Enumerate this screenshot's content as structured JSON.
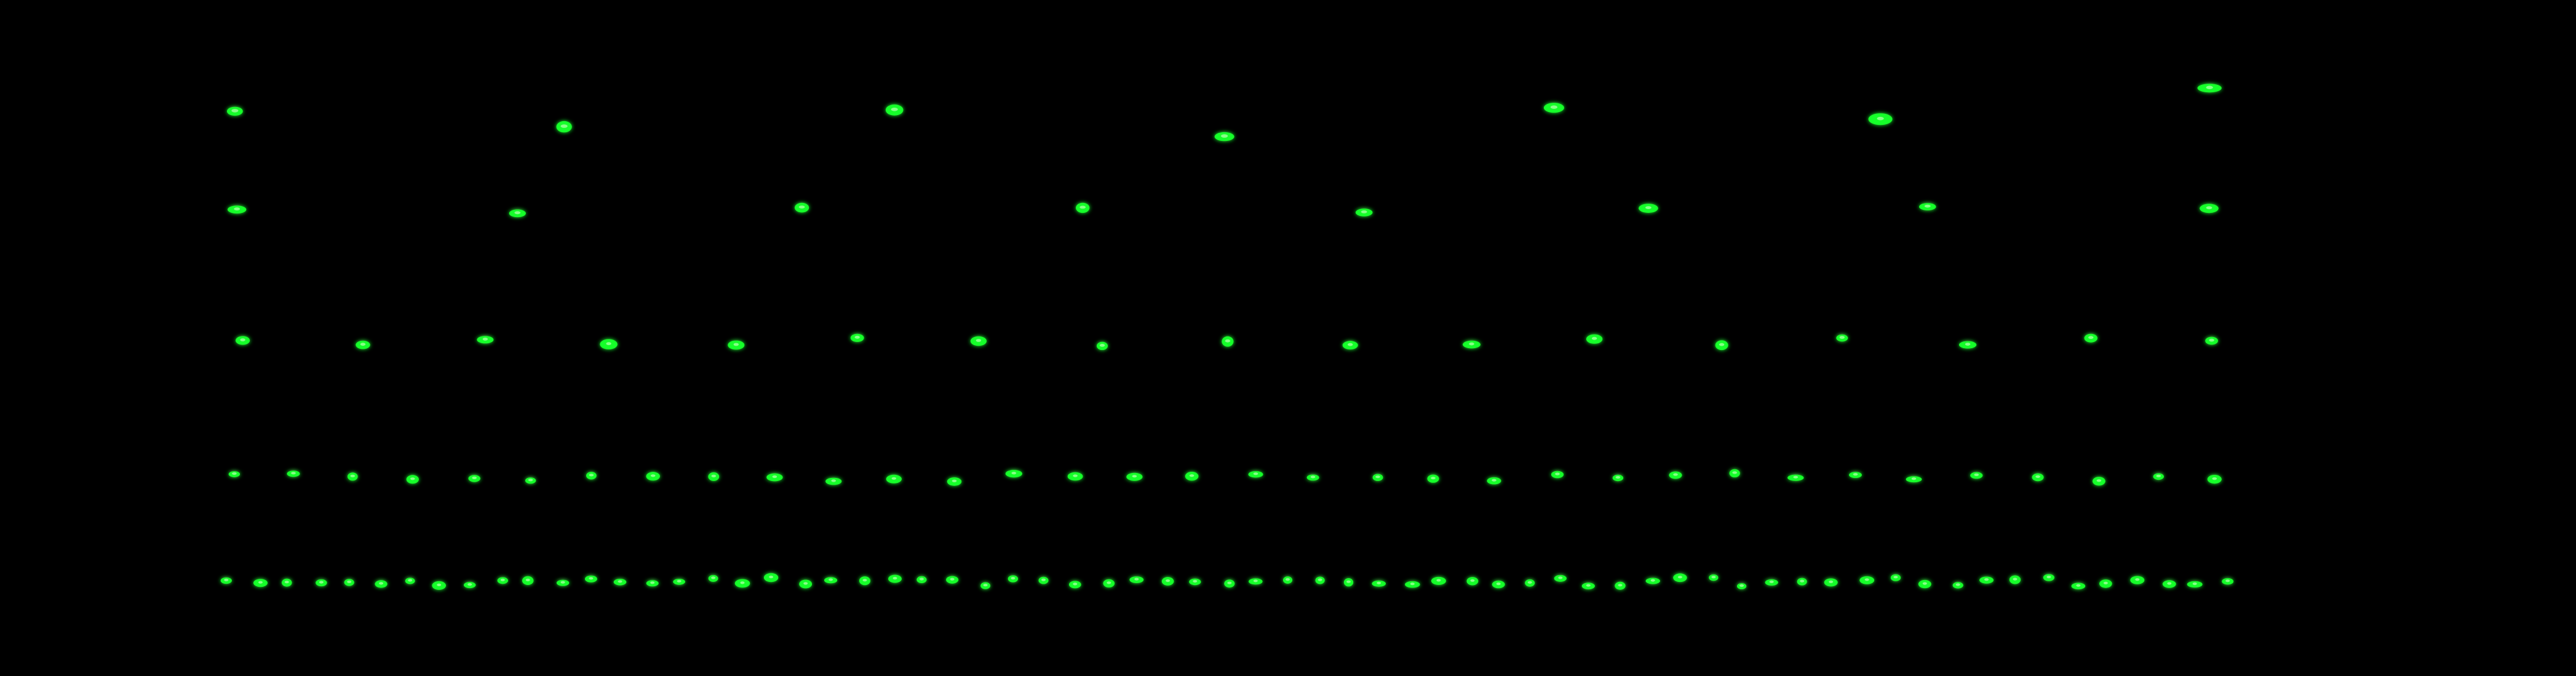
{
  "image": {
    "background": "#000000",
    "spot_color": "#19ff2a",
    "spot_highlight": "#b8ffb0",
    "rows": [
      {
        "row": 1,
        "spot_count": 7
      },
      {
        "row": 2,
        "spot_count": 8
      },
      {
        "row": 3,
        "spot_count": 17
      },
      {
        "row": 4,
        "spot_count": 34
      },
      {
        "row": 5,
        "spot_count": 67
      }
    ]
  }
}
